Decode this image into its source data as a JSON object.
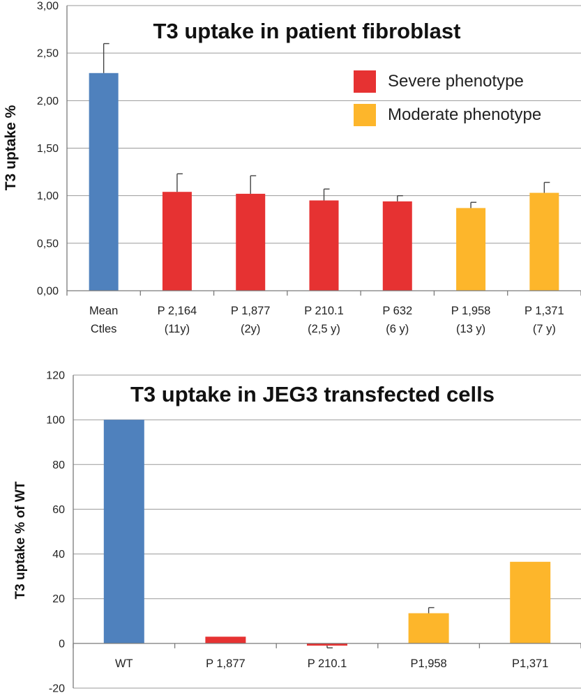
{
  "colors": {
    "control": "#4f81bd",
    "severe": "#e63232",
    "moderate": "#fdb62b",
    "grid": "#9a9a9a",
    "axis": "#7a7a7a",
    "error": "#444444"
  },
  "chart_data": [
    {
      "type": "bar",
      "title": "T3 uptake in patient fibroblast",
      "xlabel": "",
      "ylabel": "T3 uptake %",
      "ylim": [
        0,
        3
      ],
      "yticks": [
        "0,00",
        "0,50",
        "1,00",
        "1,50",
        "2,00",
        "2,50",
        "3,00"
      ],
      "grid": true,
      "legend_position": "top-right",
      "legend": [
        {
          "label": "Severe phenotype",
          "group": "severe"
        },
        {
          "label": "Moderate phenotype",
          "group": "moderate"
        }
      ],
      "categories": [
        {
          "line1": "Mean",
          "line2": "Ctles",
          "value": 2.29,
          "error": 0.31,
          "group": "control"
        },
        {
          "line1": "P 2,164",
          "line2": "(11y)",
          "value": 1.04,
          "error": 0.19,
          "group": "severe"
        },
        {
          "line1": "P 1,877",
          "line2": "(2y)",
          "value": 1.02,
          "error": 0.19,
          "group": "severe"
        },
        {
          "line1": "P 210.1",
          "line2": "(2,5 y)",
          "value": 0.95,
          "error": 0.12,
          "group": "severe"
        },
        {
          "line1": "P 632",
          "line2": "(6 y)",
          "value": 0.94,
          "error": 0.06,
          "group": "severe"
        },
        {
          "line1": "P 1,958",
          "line2": "(13 y)",
          "value": 0.87,
          "error": 0.06,
          "group": "moderate"
        },
        {
          "line1": "P 1,371",
          "line2": "(7 y)",
          "value": 1.03,
          "error": 0.11,
          "group": "moderate"
        }
      ]
    },
    {
      "type": "bar",
      "title": "T3 uptake in JEG3 transfected cells",
      "xlabel": "",
      "ylabel": "T3 uptake % of WT",
      "ylim": [
        -20,
        120
      ],
      "yticks": [
        "-20",
        "0",
        "20",
        "40",
        "60",
        "80",
        "100",
        "120"
      ],
      "grid": true,
      "categories": [
        {
          "line1": "WT",
          "value": 100,
          "error": 0,
          "group": "control"
        },
        {
          "line1": "P 1,877",
          "value": 3,
          "error": 0,
          "group": "severe"
        },
        {
          "line1": "P 210.1",
          "value": -1,
          "error": 1,
          "group": "severe"
        },
        {
          "line1": "P1,958",
          "value": 13.5,
          "error": 2.5,
          "group": "moderate"
        },
        {
          "line1": "P1,371",
          "value": 36.5,
          "error": 0,
          "group": "moderate"
        }
      ]
    }
  ]
}
